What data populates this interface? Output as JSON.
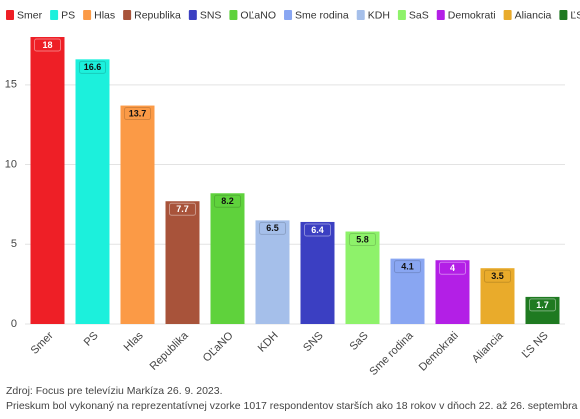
{
  "chart_data": {
    "type": "bar",
    "categories": [
      "Smer",
      "PS",
      "Hlas",
      "Republika",
      "OĽaNO",
      "KDH",
      "SNS",
      "SaS",
      "Sme rodina",
      "Demokrati",
      "Aliancia",
      "ĽS NS"
    ],
    "values": [
      18,
      16.6,
      13.7,
      7.7,
      8.2,
      6.5,
      6.4,
      5.8,
      4.1,
      4,
      3.5,
      1.7
    ],
    "colors": [
      "#ee1f26",
      "#1cf0dc",
      "#fb9a46",
      "#a8533a",
      "#5fd23c",
      "#a5bfea",
      "#3b3fc2",
      "#8ef26a",
      "#89a6f2",
      "#b31fe6",
      "#e9ab2b",
      "#1f7a21"
    ],
    "legend": [
      "Smer",
      "PS",
      "Hlas",
      "Republika",
      "SNS",
      "OĽaNO",
      "Sme rodina",
      "KDH",
      "SaS",
      "Demokrati",
      "Aliancia",
      "ĽS NS"
    ],
    "ylim": [
      0,
      18
    ],
    "yticks": [
      0,
      5,
      10,
      15
    ],
    "grid": true,
    "source": "Zdroj: Focus pre televíziu Markíza 26. 9. 2023.",
    "note": "Prieskum bol vykonaný na reprezentatívnej vzorke 1017 respondentov starších ako 18 rokov v dňoch 22. až 26. septembra"
  }
}
